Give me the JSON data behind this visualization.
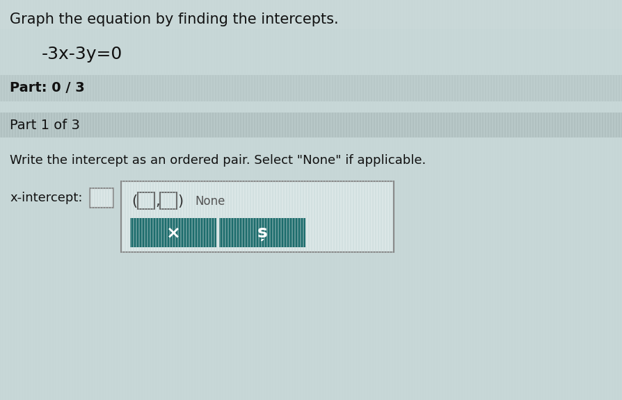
{
  "bg_color": "#c8d8d8",
  "title_text": "Graph the equation by finding the intercepts.",
  "equation": "-3x-3y=0",
  "part_progress": "Part: 0 / 3",
  "part_label": "Part 1 of 3",
  "instruction": "Write the intercept as an ordered pair. Select \"None\" if applicable.",
  "intercept_label": "x-intercept:",
  "ordered_pair_symbol": "(□,□)",
  "none_text": "None",
  "button1_text": "×",
  "button2_text": "ș",
  "button_color": "#1a6b6b",
  "button_text_color": "#ffffff",
  "stripe_color_light": "#d4e4e4",
  "stripe_color_dark": "#bfcdcd",
  "part_bar_color": "#c0d0d0",
  "part1_bar_color": "#b8caca",
  "box_border_color": "#888888",
  "small_box_bg": "#e8f0f0",
  "dropdown_bg": "#e8f0f0",
  "title_fontsize": 15,
  "equation_fontsize": 16,
  "body_fontsize": 13,
  "label_fontsize": 13
}
